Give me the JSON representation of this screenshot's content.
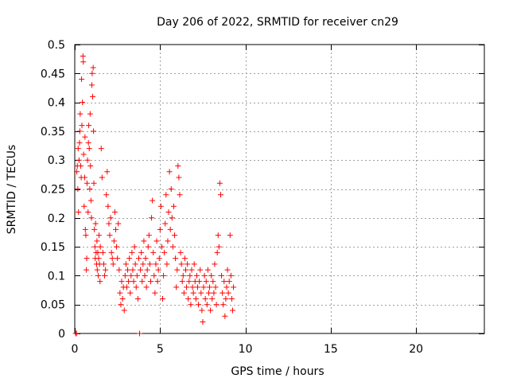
{
  "chart_data": {
    "type": "scatter",
    "title": "Day 206 of 2022, SRMTID for receiver cn29",
    "xlabel": "GPS time / hours",
    "ylabel": "SRMTID / TECUs",
    "xlim": [
      0,
      24
    ],
    "ylim": [
      0,
      0.5
    ],
    "grid": true,
    "marker": "+",
    "xticks": [
      0,
      5,
      10,
      15,
      20
    ],
    "xtick_labels": [
      "0",
      "5",
      "10",
      "15",
      "20"
    ],
    "yticks": [
      0,
      0.05,
      0.1,
      0.15,
      0.2,
      0.25,
      0.3,
      0.35,
      0.4,
      0.45,
      0.5
    ],
    "ytick_labels": [
      "0",
      "0.05",
      "0.1",
      "0.15",
      "0.2",
      "0.25",
      "0.3",
      "0.35",
      "0.4",
      "0.45",
      "0.5"
    ],
    "series": [
      {
        "name": "SRMTID cn29",
        "color": "#ff0000",
        "points": [
          [
            0.05,
            0.0
          ],
          [
            0.1,
            0.0
          ],
          [
            0.12,
            0.28
          ],
          [
            0.15,
            0.29
          ],
          [
            0.18,
            0.25
          ],
          [
            0.2,
            0.32
          ],
          [
            0.22,
            0.21
          ],
          [
            0.25,
            0.3
          ],
          [
            0.28,
            0.33
          ],
          [
            0.3,
            0.35
          ],
          [
            0.32,
            0.38
          ],
          [
            0.35,
            0.29
          ],
          [
            0.38,
            0.27
          ],
          [
            0.4,
            0.44
          ],
          [
            0.42,
            0.36
          ],
          [
            0.45,
            0.4
          ],
          [
            0.48,
            0.48
          ],
          [
            0.5,
            0.47
          ],
          [
            0.52,
            0.31
          ],
          [
            0.55,
            0.22
          ],
          [
            0.58,
            0.27
          ],
          [
            0.6,
            0.34
          ],
          [
            0.62,
            0.18
          ],
          [
            0.65,
            0.17
          ],
          [
            0.68,
            0.11
          ],
          [
            0.7,
            0.13
          ],
          [
            0.72,
            0.26
          ],
          [
            0.75,
            0.3
          ],
          [
            0.78,
            0.21
          ],
          [
            0.8,
            0.33
          ],
          [
            0.82,
            0.36
          ],
          [
            0.85,
            0.32
          ],
          [
            0.88,
            0.25
          ],
          [
            0.9,
            0.38
          ],
          [
            0.92,
            0.29
          ],
          [
            0.95,
            0.23
          ],
          [
            0.98,
            0.2
          ],
          [
            1.0,
            0.43
          ],
          [
            1.02,
            0.45
          ],
          [
            1.05,
            0.41
          ],
          [
            1.08,
            0.46
          ],
          [
            1.1,
            0.35
          ],
          [
            1.12,
            0.26
          ],
          [
            1.15,
            0.18
          ],
          [
            1.18,
            0.15
          ],
          [
            1.2,
            0.13
          ],
          [
            1.22,
            0.19
          ],
          [
            1.25,
            0.14
          ],
          [
            1.28,
            0.12
          ],
          [
            1.3,
            0.16
          ],
          [
            1.32,
            0.11
          ],
          [
            1.35,
            0.14
          ],
          [
            1.38,
            0.1
          ],
          [
            1.4,
            0.13
          ],
          [
            1.42,
            0.17
          ],
          [
            1.45,
            0.12
          ],
          [
            1.48,
            0.09
          ],
          [
            1.5,
            0.15
          ],
          [
            1.55,
            0.32
          ],
          [
            1.6,
            0.27
          ],
          [
            1.65,
            0.14
          ],
          [
            1.7,
            0.12
          ],
          [
            1.75,
            0.1
          ],
          [
            1.8,
            0.11
          ],
          [
            1.85,
            0.24
          ],
          [
            1.9,
            0.28
          ],
          [
            1.95,
            0.22
          ],
          [
            2.0,
            0.19
          ],
          [
            2.05,
            0.17
          ],
          [
            2.1,
            0.2
          ],
          [
            2.15,
            0.14
          ],
          [
            2.2,
            0.13
          ],
          [
            2.25,
            0.12
          ],
          [
            2.3,
            0.16
          ],
          [
            2.35,
            0.21
          ],
          [
            2.4,
            0.18
          ],
          [
            2.45,
            0.15
          ],
          [
            2.5,
            0.13
          ],
          [
            2.55,
            0.19
          ],
          [
            2.6,
            0.11
          ],
          [
            2.65,
            0.07
          ],
          [
            2.7,
            0.05
          ],
          [
            2.75,
            0.09
          ],
          [
            2.8,
            0.06
          ],
          [
            2.85,
            0.08
          ],
          [
            2.9,
            0.04
          ],
          [
            2.95,
            0.1
          ],
          [
            3.0,
            0.12
          ],
          [
            3.05,
            0.08
          ],
          [
            3.1,
            0.11
          ],
          [
            3.15,
            0.09
          ],
          [
            3.2,
            0.13
          ],
          [
            3.25,
            0.07
          ],
          [
            3.3,
            0.1
          ],
          [
            3.35,
            0.14
          ],
          [
            3.4,
            0.11
          ],
          [
            3.45,
            0.09
          ],
          [
            3.5,
            0.15
          ],
          [
            3.55,
            0.12
          ],
          [
            3.6,
            0.08
          ],
          [
            3.65,
            0.1
          ],
          [
            3.7,
            0.06
          ],
          [
            3.75,
            0.13
          ],
          [
            3.8,
            0.0
          ],
          [
            3.85,
            0.11
          ],
          [
            3.9,
            0.14
          ],
          [
            3.95,
            0.09
          ],
          [
            4.0,
            0.12
          ],
          [
            4.05,
            0.16
          ],
          [
            4.1,
            0.1
          ],
          [
            4.15,
            0.13
          ],
          [
            4.2,
            0.08
          ],
          [
            4.25,
            0.11
          ],
          [
            4.3,
            0.15
          ],
          [
            4.35,
            0.17
          ],
          [
            4.4,
            0.12
          ],
          [
            4.45,
            0.09
          ],
          [
            4.5,
            0.2
          ],
          [
            4.55,
            0.23
          ],
          [
            4.6,
            0.14
          ],
          [
            4.65,
            0.1
          ],
          [
            4.7,
            0.07
          ],
          [
            4.75,
            0.12
          ],
          [
            4.8,
            0.16
          ],
          [
            4.85,
            0.09
          ],
          [
            4.9,
            0.11
          ],
          [
            4.95,
            0.13
          ],
          [
            5.0,
            0.18
          ],
          [
            5.05,
            0.22
          ],
          [
            5.1,
            0.15
          ],
          [
            5.15,
            0.06
          ],
          [
            5.2,
            0.1
          ],
          [
            5.25,
            0.14
          ],
          [
            5.3,
            0.19
          ],
          [
            5.35,
            0.24
          ],
          [
            5.4,
            0.12
          ],
          [
            5.45,
            0.16
          ],
          [
            5.5,
            0.21
          ],
          [
            5.55,
            0.28
          ],
          [
            5.6,
            0.18
          ],
          [
            5.65,
            0.25
          ],
          [
            5.7,
            0.2
          ],
          [
            5.75,
            0.15
          ],
          [
            5.8,
            0.22
          ],
          [
            5.85,
            0.17
          ],
          [
            5.9,
            0.13
          ],
          [
            5.95,
            0.08
          ],
          [
            6.0,
            0.11
          ],
          [
            6.05,
            0.29
          ],
          [
            6.1,
            0.27
          ],
          [
            6.15,
            0.24
          ],
          [
            6.2,
            0.14
          ],
          [
            6.25,
            0.12
          ],
          [
            6.3,
            0.09
          ],
          [
            6.35,
            0.1
          ],
          [
            6.4,
            0.07
          ],
          [
            6.45,
            0.13
          ],
          [
            6.5,
            0.11
          ],
          [
            6.55,
            0.08
          ],
          [
            6.6,
            0.12
          ],
          [
            6.65,
            0.06
          ],
          [
            6.7,
            0.09
          ],
          [
            6.75,
            0.1
          ],
          [
            6.8,
            0.05
          ],
          [
            6.85,
            0.11
          ],
          [
            6.9,
            0.08
          ],
          [
            6.95,
            0.07
          ],
          [
            7.0,
            0.12
          ],
          [
            7.05,
            0.09
          ],
          [
            7.1,
            0.06
          ],
          [
            7.15,
            0.1
          ],
          [
            7.2,
            0.08
          ],
          [
            7.25,
            0.05
          ],
          [
            7.3,
            0.09
          ],
          [
            7.35,
            0.11
          ],
          [
            7.4,
            0.07
          ],
          [
            7.45,
            0.04
          ],
          [
            7.5,
            0.02
          ],
          [
            7.55,
            0.08
          ],
          [
            7.6,
            0.1
          ],
          [
            7.65,
            0.06
          ],
          [
            7.7,
            0.09
          ],
          [
            7.75,
            0.05
          ],
          [
            7.8,
            0.11
          ],
          [
            7.85,
            0.07
          ],
          [
            7.9,
            0.08
          ],
          [
            7.95,
            0.04
          ],
          [
            8.0,
            0.1
          ],
          [
            8.05,
            0.06
          ],
          [
            8.1,
            0.09
          ],
          [
            8.15,
            0.07
          ],
          [
            8.2,
            0.12
          ],
          [
            8.25,
            0.08
          ],
          [
            8.3,
            0.05
          ],
          [
            8.35,
            0.14
          ],
          [
            8.4,
            0.17
          ],
          [
            8.45,
            0.15
          ],
          [
            8.5,
            0.26
          ],
          [
            8.55,
            0.24
          ],
          [
            8.6,
            0.1
          ],
          [
            8.65,
            0.07
          ],
          [
            8.7,
            0.05
          ],
          [
            8.75,
            0.09
          ],
          [
            8.8,
            0.03
          ],
          [
            8.85,
            0.06
          ],
          [
            8.9,
            0.08
          ],
          [
            8.95,
            0.11
          ],
          [
            9.0,
            0.07
          ],
          [
            9.05,
            0.09
          ],
          [
            9.1,
            0.17
          ],
          [
            9.15,
            0.1
          ],
          [
            9.2,
            0.06
          ],
          [
            9.25,
            0.04
          ],
          [
            9.3,
            0.08
          ]
        ]
      }
    ]
  }
}
